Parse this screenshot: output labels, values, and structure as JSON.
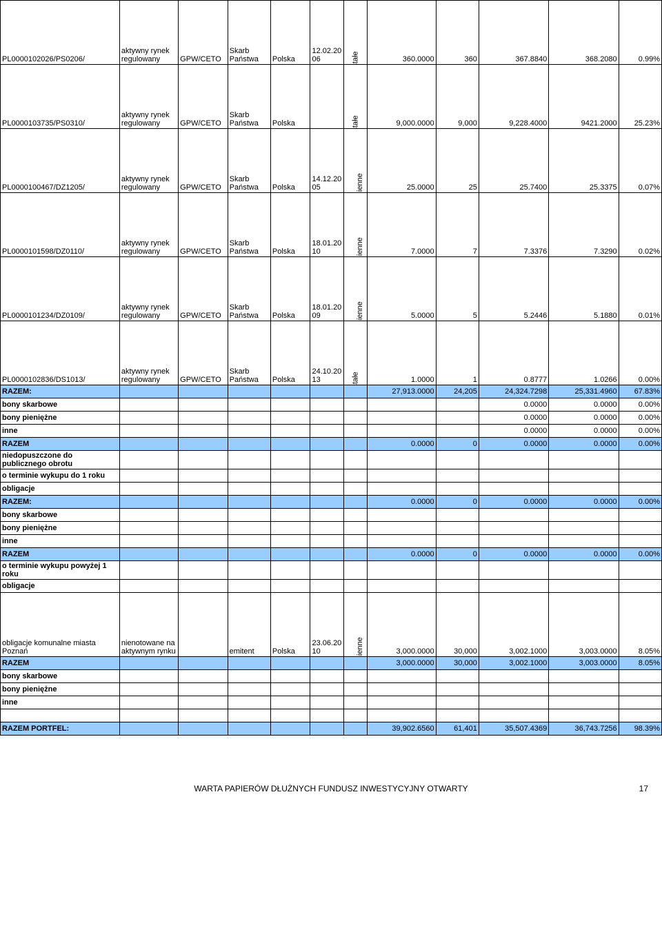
{
  "colors": {
    "highlight": "#99ccff",
    "border": "#000000",
    "background": "#ffffff",
    "text": "#000000"
  },
  "rows": [
    {
      "type": "data",
      "tall": true,
      "c0": "PL0000102026/PS0206/",
      "c1": "aktywny rynek regulowany",
      "c2": "GPW/CETO",
      "c3": "Skarb Państwa",
      "c4": "Polska",
      "c5": "12.02.2006",
      "c6r": "stałe",
      "c7": "360.0000",
      "c8": "360",
      "c9": "367.8840",
      "c10": "368.2080",
      "c11": "0.99%"
    },
    {
      "type": "data",
      "tall": true,
      "c0": "PL0000103735/PS0310/",
      "c1": "aktywny rynek regulowany",
      "c2": "GPW/CETO",
      "c3": "Skarb Państwa",
      "c4": "Polska",
      "c5": "",
      "c6r": "stałe",
      "c7": "9,000.0000",
      "c8": "9,000",
      "c9": "9,228.4000",
      "c10": "9421.2000",
      "c11": "25.23%"
    },
    {
      "type": "data",
      "tall": true,
      "c0": "PL0000100467/DZ1205/",
      "c1": "aktywny rynek regulowany",
      "c2": "GPW/CETO",
      "c3": "Skarb Państwa",
      "c4": "Polska",
      "c5": "14.12.2005",
      "c6r": "zmienne",
      "c7": "25.0000",
      "c8": "25",
      "c9": "25.7400",
      "c10": "25.3375",
      "c11": "0.07%"
    },
    {
      "type": "data",
      "tall": true,
      "c0": "PL0000101598/DZ0110/",
      "c1": "aktywny rynek regulowany",
      "c2": "GPW/CETO",
      "c3": "Skarb Państwa",
      "c4": "Polska",
      "c5": "18.01.2010",
      "c6r": "zmienne",
      "c7": "7.0000",
      "c8": "7",
      "c9": "7.3376",
      "c10": "7.3290",
      "c11": "0.02%"
    },
    {
      "type": "data",
      "tall": true,
      "c0": "PL0000101234/DZ0109/",
      "c1": "aktywny rynek regulowany",
      "c2": "GPW/CETO",
      "c3": "Skarb Państwa",
      "c4": "Polska",
      "c5": "18.01.2009",
      "c6r": "zmienne",
      "c7": "5.0000",
      "c8": "5",
      "c9": "5.2446",
      "c10": "5.1880",
      "c11": "0.01%"
    },
    {
      "type": "data",
      "tall": true,
      "c0": "PL0000102836/DS1013/",
      "c1": "aktywny rynek regulowany",
      "c2": "GPW/CETO",
      "c3": "Skarb Państwa",
      "c4": "Polska",
      "c5": "24.10.2013",
      "c6r": "stałe",
      "c7": "1.0000",
      "c8": "1",
      "c9": "0.8777",
      "c10": "1.0266",
      "c11": "0.00%"
    },
    {
      "type": "section",
      "hl": true,
      "c0": "RAZEM:",
      "c7": "27,913.0000",
      "c8": "24,205",
      "c9": "24,324.7298",
      "c10": "25,331.4960",
      "c11": "67.83%"
    },
    {
      "type": "section",
      "c0": "bony skarbowe",
      "c9": "0.0000",
      "c10": "0.0000",
      "c11": "0.00%"
    },
    {
      "type": "section",
      "c0": "bony pieniężne",
      "c9": "0.0000",
      "c10": "0.0000",
      "c11": "0.00%"
    },
    {
      "type": "section",
      "c0": "inne",
      "c9": "0.0000",
      "c10": "0.0000",
      "c11": "0.00%"
    },
    {
      "type": "section",
      "hl": true,
      "c0": "RAZEM",
      "c7": "0.0000",
      "c8": "0",
      "c9": "0.0000",
      "c10": "0.0000",
      "c11": "0.00%"
    },
    {
      "type": "section",
      "c0": "niedopuszczone do publicznego obrotu"
    },
    {
      "type": "section",
      "c0": "o terminie wykupu do 1 roku"
    },
    {
      "type": "section",
      "c0": "obligacje"
    },
    {
      "type": "section",
      "hl": true,
      "c0": "RAZEM:",
      "c7": "0.0000",
      "c8": "0",
      "c9": "0.0000",
      "c10": "0.0000",
      "c11": "0.00%"
    },
    {
      "type": "section",
      "c0": "bony skarbowe"
    },
    {
      "type": "section",
      "c0": "bony pieniężne"
    },
    {
      "type": "section",
      "c0": "inne"
    },
    {
      "type": "section",
      "hl": true,
      "c0": "RAZEM",
      "c7": "0.0000",
      "c8": "0",
      "c9": "0.0000",
      "c10": "0.0000",
      "c11": "0.00%"
    },
    {
      "type": "section",
      "c0": "o terminie wykupu powyżej 1 roku"
    },
    {
      "type": "section",
      "c0": "obligacje"
    },
    {
      "type": "data",
      "tall": true,
      "c0": "obligacje komunalne miasta Poznań",
      "c1": "nienotowane na aktywnym rynku",
      "c2": "",
      "c3": "emitent",
      "c4": "Polska",
      "c5": "23.06.2010",
      "c6r": "zmienne",
      "c7": "3,000.0000",
      "c8": "30,000",
      "c9": "3,002.1000",
      "c10": "3,003.0000",
      "c11": "8.05%"
    },
    {
      "type": "section",
      "hl": true,
      "c0": "RAZEM",
      "c7": "3,000.0000",
      "c8": "30,000",
      "c9": "3,002.1000",
      "c10": "3,003.0000",
      "c11": "8.05%"
    },
    {
      "type": "section",
      "c0": "bony skarbowe"
    },
    {
      "type": "section",
      "c0": "bony pieniężne"
    },
    {
      "type": "section",
      "c0": "inne"
    },
    {
      "type": "blank"
    },
    {
      "type": "section",
      "hl": true,
      "c0": "RAZEM PORTFEL:",
      "c7": "39,902.6560",
      "c8": "61,401",
      "c9": "35,507.4369",
      "c10": "36,743.7256",
      "c11": "98.39%"
    }
  ],
  "footer": {
    "text": "WARTA PAPIERÓW DŁUŻNYCH FUNDUSZ INWESTYCYJNY OTWARTY",
    "page": "17"
  }
}
